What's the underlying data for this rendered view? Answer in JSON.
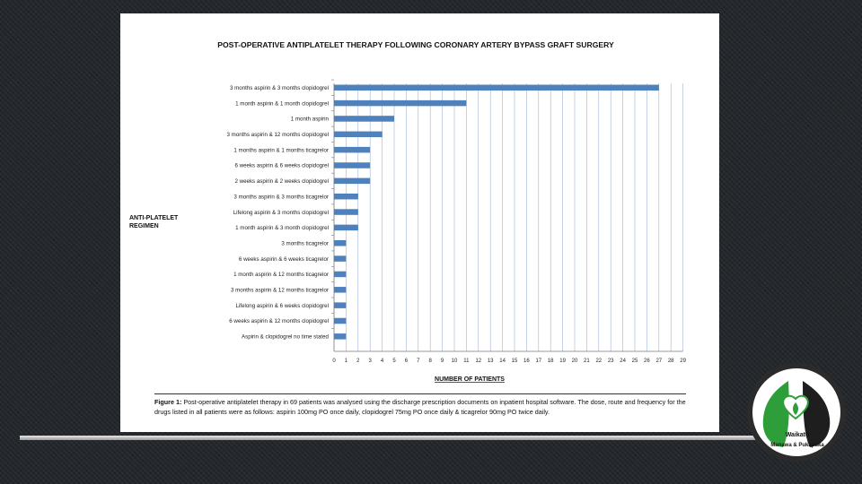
{
  "chart_data": {
    "type": "bar",
    "orientation": "horizontal",
    "title": "POST-OPERATIVE ANTIPLATELET THERAPY FOLLOWING CORONARY ARTERY BYPASS GRAFT SURGERY",
    "ylabel": "ANTI-PLATELET REGIMEN",
    "xlabel": "NUMBER OF PATIENTS",
    "xlim": [
      0,
      29
    ],
    "categories": [
      "3 months aspirin & 3 months clopidogrel",
      "1 month aspirin & 1 month clopidogrel",
      "1 month aspirin",
      "3 months aspirin & 12 months clopidogrel",
      "1 months aspirin & 1 months ticagrelor",
      "6 weeks aspirin & 6 weeks clopidogrel",
      "2 weeks aspirin & 2 weeks clopidogrel",
      "3 months aspirin & 3 months ticagrelor",
      "Lifelong aspirin & 3 months clopidogrel",
      "1 month aspirin & 3 month clopidogrel",
      "3 months ticagrelor",
      "6 weeks aspirin & 6 weeks ticagrelor",
      "1 month aspirin & 12 months ticagrelor",
      "3 months aspirin & 12 months ticagrelor",
      "Lifelong aspirin & 6 weeks clopidogrel",
      "6 weeks aspirin & 12 months clopidogrel",
      "Aspirin & clopidogrel no time stated"
    ],
    "values": [
      27,
      11,
      5,
      4,
      3,
      3,
      3,
      2,
      2,
      2,
      1,
      1,
      1,
      1,
      1,
      1,
      1
    ],
    "ticks": [
      0,
      1,
      2,
      3,
      4,
      5,
      6,
      7,
      8,
      9,
      10,
      11,
      12,
      13,
      14,
      15,
      16,
      17,
      18,
      19,
      20,
      21,
      22,
      23,
      24,
      25,
      26,
      27,
      28,
      29
    ],
    "grid": true,
    "bar_color": "#4f81bd",
    "grid_color": "#9eb6d6"
  },
  "caption": {
    "label": "Figure 1:",
    "text": " Post-operative antiplatelet therapy in 69 patients was analysed using the discharge prescription documents on inpatient hospital software. The dose, route and frequency for the drugs listed in all patients were as follows: aspirin 100mg PO once daily, clopidogrel 75mg PO once daily & ticagrelor 90mg PO twice daily."
  },
  "logo": {
    "line1": "Waikato",
    "line2": "Manawa & Pukapuka"
  }
}
